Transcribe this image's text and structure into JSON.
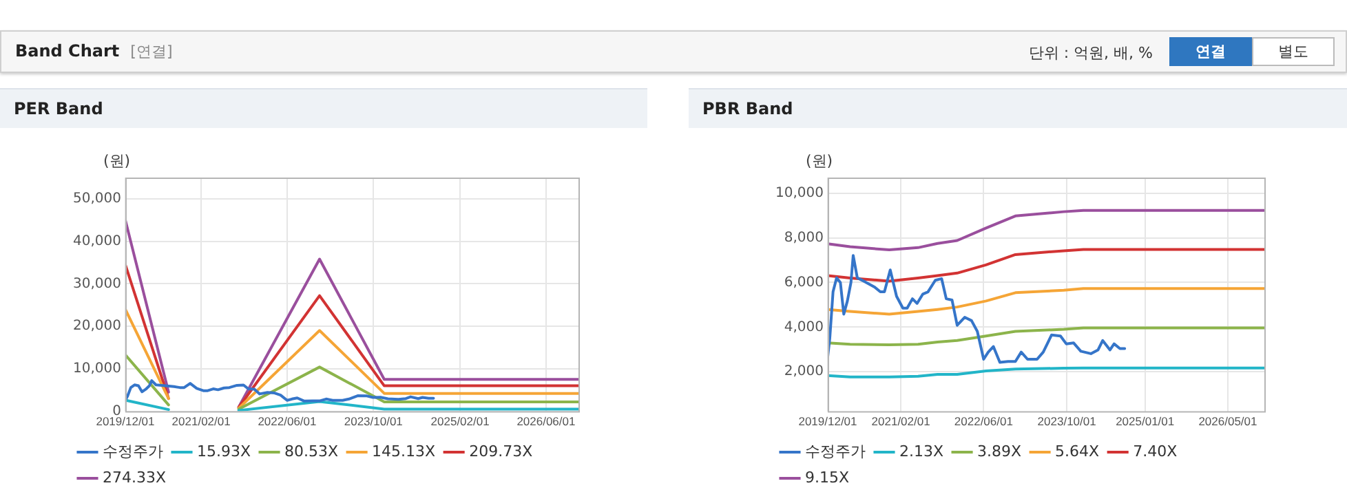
{
  "chart_data": [
    {
      "type": "other",
      "title": "Band Chart",
      "subtitle": "[연결]",
      "annotations": [
        "단위 : 억원, 배, %",
        "연결",
        "별도"
      ]
    },
    {
      "type": "line",
      "title": "PER Band",
      "ylabel": "(원)",
      "grid": true,
      "legend": "bottom",
      "marker": "none",
      "line_style": "solid",
      "xlim": [
        "2019-12-01",
        "2026-12-01"
      ],
      "xticks": [
        {
          "value": "2019-12-01",
          "label": "2019/12/01"
        },
        {
          "value": "2021-02-01",
          "label": "2021/02/01"
        },
        {
          "value": "2022-06-01",
          "label": "2022/06/01"
        },
        {
          "value": "2023-10-01",
          "label": "2023/10/01"
        },
        {
          "value": "2025-02-01",
          "label": "2025/02/01"
        },
        {
          "value": "2026-06-01",
          "label": "2026/06/01"
        }
      ],
      "ylim": [
        0,
        55000
      ],
      "yticks": [
        {
          "value": 0,
          "label": "0"
        },
        {
          "value": 10000,
          "label": "10,000"
        },
        {
          "value": 20000,
          "label": "20,000"
        },
        {
          "value": 30000,
          "label": "30,000"
        },
        {
          "value": 40000,
          "label": "40,000"
        },
        {
          "value": 50000,
          "label": "50,000"
        }
      ],
      "x": [
        "2019-12-01",
        "2020-08-01",
        "2021-01-01",
        "2021-09-01",
        "2022-12-01",
        "2023-12-01",
        "2026-12-01"
      ],
      "series": [
        {
          "name": "수정주가",
          "color": "#3575c9",
          "x": [
            "2019-12-01",
            "2019-12-13",
            "2020-01-01",
            "2020-01-22",
            "2020-02-13",
            "2020-03-04",
            "2020-03-25",
            "2020-04-15",
            "2020-04-28",
            "2020-05-22",
            "2020-07-04",
            "2020-09-01",
            "2020-10-04",
            "2020-10-28",
            "2020-12-01",
            "2021-01-07",
            "2021-02-13",
            "2021-03-10",
            "2021-04-10",
            "2021-05-07",
            "2021-06-10",
            "2021-07-10",
            "2021-08-22",
            "2021-09-28",
            "2021-10-25",
            "2021-11-28",
            "2021-12-28",
            "2022-02-10",
            "2022-03-22",
            "2022-04-25",
            "2022-06-01",
            "2022-06-28",
            "2022-07-28",
            "2022-09-04",
            "2022-10-22",
            "2022-12-04",
            "2023-01-07",
            "2023-02-13",
            "2023-04-10",
            "2023-05-16",
            "2023-07-04",
            "2023-08-25",
            "2023-09-28",
            "2023-11-10",
            "2023-12-22",
            "2024-02-19",
            "2024-04-01",
            "2024-04-28",
            "2024-06-10",
            "2024-07-04",
            "2024-08-07",
            "2024-09-04"
          ],
          "values": [
            2670,
            3500,
            5580,
            6210,
            6000,
            4580,
            5170,
            6000,
            7210,
            6210,
            6040,
            5790,
            5580,
            5580,
            6560,
            5380,
            4850,
            4850,
            5270,
            5060,
            5480,
            5580,
            6100,
            6170,
            5270,
            5210,
            4080,
            4440,
            4290,
            3810,
            2560,
            2880,
            3130,
            2420,
            2460,
            2460,
            2880,
            2560,
            2560,
            2880,
            3650,
            3600,
            3250,
            3290,
            2920,
            2810,
            2980,
            3400,
            2980,
            3250,
            3040,
            3040
          ]
        },
        {
          "name": "15.93X",
          "color": "#22b5c8",
          "values": [
            2600,
            400,
            null,
            200,
            2300,
            500,
            500
          ]
        },
        {
          "name": "80.53X",
          "color": "#8cb44b",
          "values": [
            13300,
            1500,
            null,
            500,
            10400,
            2200,
            2200
          ]
        },
        {
          "name": "145.13X",
          "color": "#f5a536",
          "values": [
            24000,
            3000,
            null,
            700,
            19000,
            4200,
            4200
          ]
        },
        {
          "name": "209.73X",
          "color": "#d23333",
          "values": [
            34500,
            3000,
            null,
            900,
            27200,
            6000,
            6000
          ]
        },
        {
          "name": "274.33X",
          "color": "#9a4f9d",
          "values": [
            45000,
            4500,
            null,
            1000,
            35800,
            7500,
            7500
          ]
        }
      ]
    },
    {
      "type": "line",
      "title": "PBR Band",
      "ylabel": "(원)",
      "grid": true,
      "legend": "bottom",
      "marker": "none",
      "line_style": "solid",
      "xlim": [
        "2019-12-01",
        "2026-12-01"
      ],
      "xticks": [
        {
          "value": "2019-12-01",
          "label": "2019/12/01"
        },
        {
          "value": "2021-02-01",
          "label": "2021/02/01"
        },
        {
          "value": "2022-06-01",
          "label": "2022/06/01"
        },
        {
          "value": "2023-10-01",
          "label": "2023/10/01"
        },
        {
          "value": "2025-01-01",
          "label": "2025/01/01"
        },
        {
          "value": "2026-05-01",
          "label": "2026/05/01"
        }
      ],
      "ylim": [
        230,
        10700
      ],
      "yticks": [
        {
          "value": 2000,
          "label": "2,000"
        },
        {
          "value": 4000,
          "label": "4,000"
        },
        {
          "value": 6000,
          "label": "6,000"
        },
        {
          "value": 8000,
          "label": "8,000"
        },
        {
          "value": 10000,
          "label": "10,000"
        }
      ],
      "x": [
        "2019-12-01",
        "2020-04-10",
        "2020-11-25",
        "2021-05-13",
        "2021-09-04",
        "2021-12-28",
        "2022-06-15",
        "2022-12-04",
        "2023-09-13",
        "2024-01-06",
        "2026-12-01"
      ],
      "series": [
        {
          "name": "수정주가",
          "color": "#3575c9",
          "x": [
            "2019-12-01",
            "2019-12-13",
            "2020-01-01",
            "2020-01-22",
            "2020-02-13",
            "2020-03-04",
            "2020-03-25",
            "2020-04-15",
            "2020-04-28",
            "2020-05-22",
            "2020-07-04",
            "2020-09-01",
            "2020-10-04",
            "2020-10-28",
            "2020-12-01",
            "2021-01-07",
            "2021-02-13",
            "2021-03-10",
            "2021-04-10",
            "2021-05-07",
            "2021-06-10",
            "2021-07-10",
            "2021-08-22",
            "2021-09-28",
            "2021-10-25",
            "2021-11-28",
            "2021-12-28",
            "2022-02-10",
            "2022-03-22",
            "2022-04-25",
            "2022-06-01",
            "2022-06-28",
            "2022-07-28",
            "2022-09-04",
            "2022-10-22",
            "2022-12-04",
            "2023-01-07",
            "2023-02-13",
            "2023-04-10",
            "2023-05-16",
            "2023-07-04",
            "2023-08-25",
            "2023-09-28",
            "2023-11-10",
            "2023-12-22",
            "2024-02-19",
            "2024-04-01",
            "2024-04-28",
            "2024-06-10",
            "2024-07-04",
            "2024-08-07",
            "2024-09-04"
          ],
          "values": [
            2670,
            3500,
            5580,
            6210,
            6000,
            4580,
            5170,
            6000,
            7210,
            6210,
            6040,
            5790,
            5580,
            5580,
            6560,
            5380,
            4850,
            4850,
            5270,
            5060,
            5480,
            5580,
            6100,
            6170,
            5270,
            5210,
            4080,
            4440,
            4290,
            3810,
            2560,
            2880,
            3130,
            2420,
            2460,
            2460,
            2880,
            2560,
            2560,
            2880,
            3650,
            3600,
            3250,
            3290,
            2920,
            2810,
            2980,
            3400,
            2980,
            3250,
            3040,
            3040
          ]
        },
        {
          "name": "2.13X",
          "color": "#22b5c8",
          "values": [
            1830,
            1770,
            1770,
            1800,
            1880,
            1880,
            2040,
            2120,
            2160,
            2170,
            2170
          ]
        },
        {
          "name": "3.89X",
          "color": "#8cb44b",
          "values": [
            3290,
            3230,
            3210,
            3230,
            3330,
            3400,
            3600,
            3810,
            3900,
            3960,
            3960
          ]
        },
        {
          "name": "5.64X",
          "color": "#f5a536",
          "values": [
            4790,
            4700,
            4580,
            4700,
            4790,
            4900,
            5170,
            5540,
            5650,
            5730,
            5730
          ]
        },
        {
          "name": "7.40X",
          "color": "#d23333",
          "values": [
            6310,
            6200,
            6060,
            6200,
            6310,
            6420,
            6790,
            7250,
            7420,
            7480,
            7480
          ]
        },
        {
          "name": "9.15X",
          "color": "#9a4f9d",
          "values": [
            7730,
            7600,
            7460,
            7560,
            7750,
            7880,
            8440,
            8980,
            9170,
            9230,
            9230
          ]
        }
      ]
    }
  ]
}
